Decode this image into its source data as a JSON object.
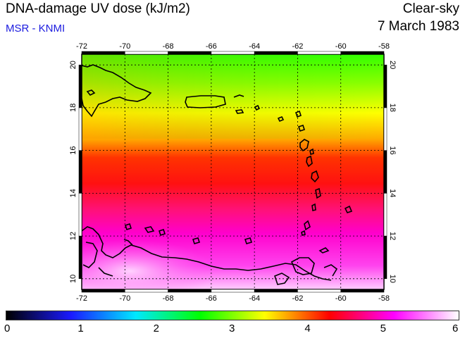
{
  "header": {
    "title": "DNA-damage UV dose (kJ/m2)",
    "source": "MSR - KNMI",
    "sky_condition": "Clear-sky",
    "date": "7 March 1983"
  },
  "map": {
    "lon_range": [
      -72,
      -58
    ],
    "lat_range": [
      9.5,
      20.5
    ],
    "lon_ticks": [
      "-72",
      "-70",
      "-68",
      "-66",
      "-64",
      "-62",
      "-60",
      "-58"
    ],
    "lat_ticks": [
      "10",
      "12",
      "14",
      "16",
      "18",
      "20"
    ],
    "gridlines": true
  },
  "colorbar": {
    "labels": [
      "0",
      "1",
      "2",
      "3",
      "4",
      "5",
      "6"
    ],
    "colors": [
      "#000000",
      "#1a1aff",
      "#00e8ff",
      "#00ff00",
      "#ffff00",
      "#ff0000",
      "#ff00ff",
      "#ffffff"
    ]
  }
}
